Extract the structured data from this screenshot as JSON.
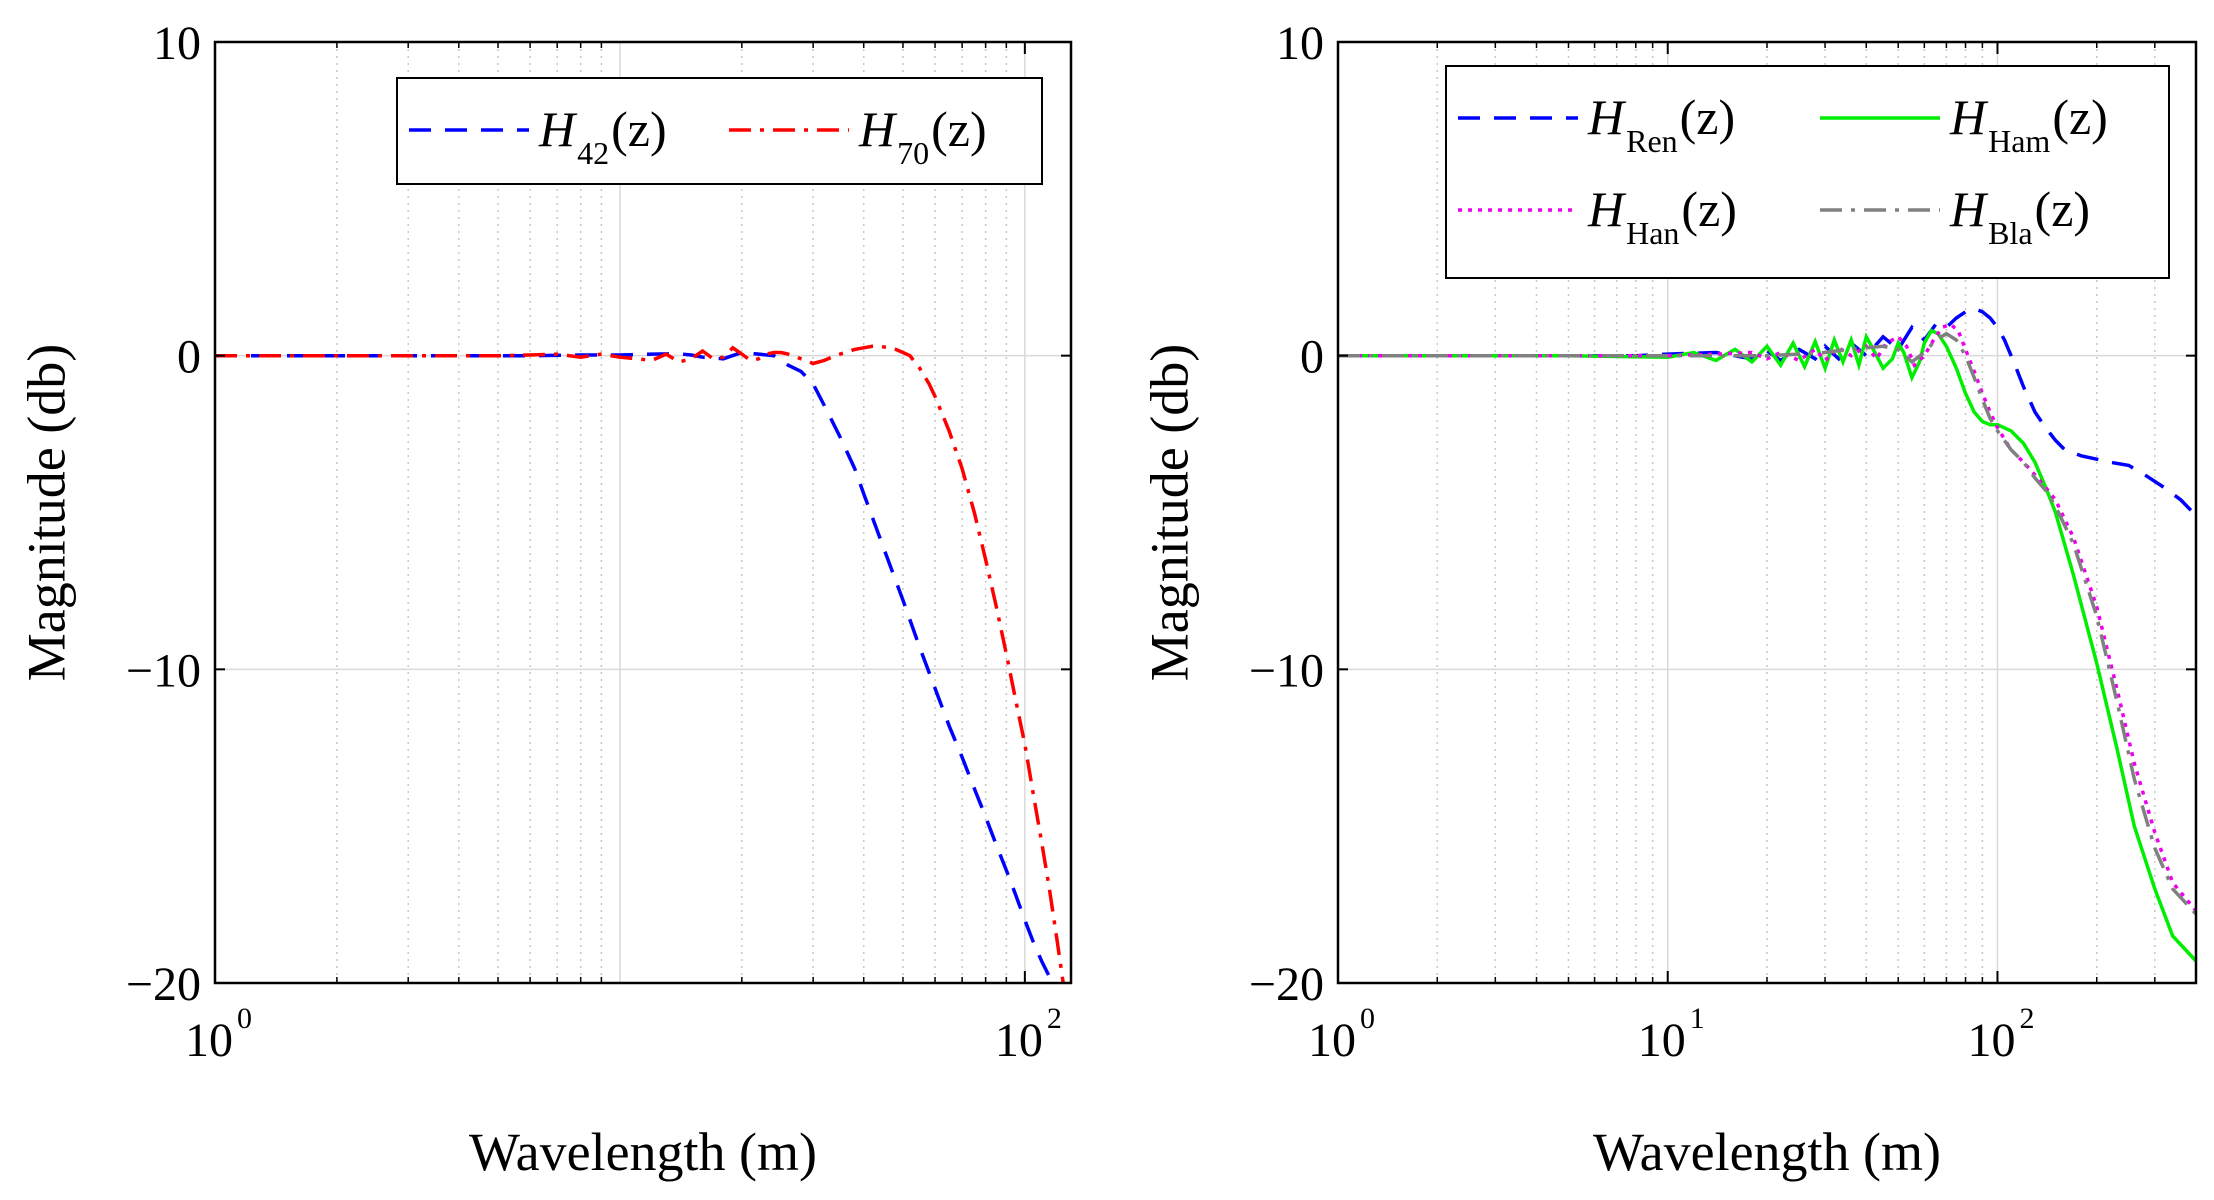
{
  "chart_data": [
    {
      "type": "line",
      "xscale": "log",
      "xlim": [
        1,
        130
      ],
      "ylim": [
        -20,
        10
      ],
      "xlabel": "Wavelength (m)",
      "ylabel": "Magnitude (db)",
      "xticks": [
        {
          "base": "10",
          "exp": "0",
          "value": 1
        },
        {
          "base": "10",
          "exp": "2",
          "value": 100
        }
      ],
      "yticks": [
        {
          "label": "10",
          "value": 10
        },
        {
          "label": "0",
          "value": 0
        },
        {
          "label": "−10",
          "value": -10
        },
        {
          "label": "−20",
          "value": -20
        }
      ],
      "grid": true,
      "legend_position": "top-right",
      "legend_columns": 2,
      "series": [
        {
          "name": "H_42(z)",
          "label_main": "H",
          "label_sub": "42",
          "label_tail": "(z)",
          "color": "#0000ff",
          "style": "dashed",
          "x": [
            1,
            2,
            4,
            6,
            8,
            10,
            12,
            14,
            15,
            16,
            18,
            20,
            22,
            24,
            26,
            28,
            30,
            32,
            35,
            38,
            40,
            45,
            50,
            55,
            60,
            65,
            70,
            75,
            80,
            85,
            90,
            95,
            100,
            105,
            110,
            115,
            120,
            125
          ],
          "y": [
            0,
            0,
            0,
            0,
            0.02,
            0.02,
            0.05,
            0.06,
            0.02,
            -0.05,
            -0.1,
            0.1,
            0.05,
            0,
            -0.3,
            -0.5,
            -0.9,
            -1.6,
            -2.6,
            -3.6,
            -4.4,
            -6.2,
            -7.8,
            -9.3,
            -10.6,
            -11.8,
            -12.8,
            -13.8,
            -14.7,
            -15.6,
            -16.4,
            -17.2,
            -18.0,
            -18.7,
            -19.3,
            -19.8,
            -20.1,
            -20.4
          ]
        },
        {
          "name": "H_70(z)",
          "label_main": "H",
          "label_sub": "70",
          "label_tail": "(z)",
          "color": "#ff0000",
          "style": "dashdot",
          "x": [
            1,
            2,
            3,
            4,
            5,
            6,
            7,
            8,
            9,
            10,
            11,
            12,
            13,
            14,
            15,
            16,
            17,
            18,
            19,
            20,
            21,
            22,
            23,
            24,
            25,
            26,
            28,
            30,
            32,
            34,
            36,
            38,
            40,
            42,
            44,
            46,
            48,
            50,
            52,
            55,
            58,
            60,
            65,
            70,
            75,
            80,
            85,
            90,
            95,
            100,
            105,
            110,
            115,
            120,
            125
          ],
          "y": [
            0,
            0,
            0,
            0,
            0,
            0.02,
            0.05,
            -0.05,
            0.05,
            -0.05,
            -0.1,
            -0.15,
            0.05,
            -0.2,
            -0.1,
            0.15,
            -0.1,
            -0.05,
            0.25,
            0.05,
            -0.15,
            -0.1,
            0.05,
            0.1,
            0.1,
            0.05,
            -0.1,
            -0.25,
            -0.15,
            0,
            0.1,
            0.2,
            0.25,
            0.3,
            0.3,
            0.25,
            0.2,
            0.1,
            0,
            -0.4,
            -0.9,
            -1.3,
            -2.4,
            -3.6,
            -5.0,
            -6.5,
            -8.0,
            -9.5,
            -11.0,
            -12.4,
            -14.0,
            -15.5,
            -17.0,
            -18.6,
            -20.2
          ]
        }
      ]
    },
    {
      "type": "line",
      "xscale": "log",
      "xlim": [
        1,
        400
      ],
      "ylim": [
        -20,
        10
      ],
      "xlabel": "Wavelength (m)",
      "ylabel": "Magnitude (db)",
      "xticks": [
        {
          "base": "10",
          "exp": "0",
          "value": 1
        },
        {
          "base": "10",
          "exp": "1",
          "value": 10
        },
        {
          "base": "10",
          "exp": "2",
          "value": 100
        }
      ],
      "yticks": [
        {
          "label": "10",
          "value": 10
        },
        {
          "label": "0",
          "value": 0
        },
        {
          "label": "−10",
          "value": -10
        },
        {
          "label": "−20",
          "value": -20
        }
      ],
      "grid": true,
      "legend_position": "top-right",
      "legend_columns": 2,
      "series": [
        {
          "name": "H_Ren(z)",
          "label_main": "H",
          "label_sub": "Ren",
          "label_tail": "(z)",
          "color": "#0000ff",
          "style": "dashed",
          "x": [
            1,
            3,
            5,
            8,
            10,
            14,
            18,
            20,
            22,
            25,
            28,
            30,
            33,
            36,
            40,
            45,
            50,
            55,
            60,
            65,
            70,
            75,
            80,
            85,
            90,
            95,
            100,
            105,
            110,
            115,
            120,
            130,
            140,
            150,
            160,
            170,
            180,
            200,
            220,
            250,
            280,
            320,
            360,
            400
          ],
          "y": [
            0,
            0,
            0,
            0,
            0.05,
            0.1,
            -0.1,
            0.15,
            -0.15,
            0.2,
            -0.1,
            0.3,
            -0.1,
            0.4,
            0,
            0.6,
            0.2,
            0.9,
            0.5,
            1.0,
            0.9,
            1.2,
            1.4,
            1.5,
            1.4,
            1.2,
            0.9,
            0.5,
            0,
            -0.5,
            -1.0,
            -1.8,
            -2.3,
            -2.7,
            -3.0,
            -3.1,
            -3.2,
            -3.3,
            -3.4,
            -3.5,
            -3.8,
            -4.2,
            -4.6,
            -5.1
          ]
        },
        {
          "name": "H_Ham(z)",
          "label_main": "H",
          "label_sub": "Ham",
          "label_tail": "(z)",
          "color": "#00ee00",
          "style": "solid",
          "x": [
            1,
            5,
            10,
            12,
            14,
            16,
            18,
            20,
            22,
            24,
            26,
            28,
            30,
            32,
            34,
            36,
            38,
            40,
            42,
            45,
            48,
            50,
            52,
            55,
            58,
            60,
            63,
            66,
            70,
            75,
            80,
            85,
            90,
            95,
            100,
            110,
            120,
            130,
            140,
            150,
            170,
            200,
            230,
            260,
            300,
            340,
            400
          ],
          "y": [
            0,
            0,
            -0.05,
            0.1,
            -0.15,
            0.2,
            -0.2,
            0.3,
            -0.3,
            0.4,
            -0.35,
            0.45,
            -0.4,
            0.5,
            -0.2,
            0.5,
            -0.3,
            0.6,
            0.2,
            -0.4,
            -0.1,
            0.4,
            0.1,
            -0.7,
            -0.2,
            0.4,
            0.8,
            0.7,
            0.3,
            -0.4,
            -1.2,
            -1.8,
            -2.1,
            -2.2,
            -2.2,
            -2.4,
            -2.8,
            -3.4,
            -4.2,
            -5.0,
            -7.0,
            -9.8,
            -12.5,
            -15.0,
            -17.0,
            -18.5,
            -19.3
          ]
        },
        {
          "name": "H_Han(z)",
          "label_main": "H",
          "label_sub": "Han",
          "label_tail": "(z)",
          "color": "#ee00ee",
          "style": "dotted",
          "x": [
            1,
            5,
            10,
            14,
            18,
            20,
            22,
            25,
            28,
            30,
            33,
            36,
            40,
            43,
            46,
            50,
            53,
            56,
            60,
            64,
            68,
            72,
            76,
            80,
            85,
            90,
            95,
            100,
            110,
            120,
            130,
            140,
            150,
            170,
            200,
            230,
            260,
            300,
            340,
            400
          ],
          "y": [
            0,
            0,
            0,
            0.05,
            0.1,
            -0.1,
            0.1,
            -0.15,
            0.2,
            -0.15,
            0.25,
            0,
            0.3,
            -0.1,
            0.4,
            0.6,
            0.3,
            -0.3,
            0,
            0.5,
            0.9,
            1.0,
            0.8,
            0.2,
            -0.5,
            -1.2,
            -1.8,
            -2.3,
            -3.0,
            -3.4,
            -3.8,
            -4.2,
            -4.6,
            -5.8,
            -8.0,
            -10.6,
            -13.0,
            -15.2,
            -16.8,
            -17.7
          ]
        },
        {
          "name": "H_Bla(z)",
          "label_main": "H",
          "label_sub": "Bla",
          "label_tail": "(z)",
          "color": "#808080",
          "style": "dashdot",
          "x": [
            1,
            5,
            10,
            15,
            20,
            25,
            30,
            35,
            40,
            45,
            50,
            55,
            60,
            65,
            70,
            75,
            80,
            85,
            90,
            95,
            100,
            110,
            120,
            130,
            140,
            150,
            170,
            200,
            230,
            260,
            300,
            340,
            400
          ],
          "y": [
            0,
            0,
            0,
            0,
            0,
            0.05,
            0.1,
            0.2,
            0.25,
            0.3,
            0.2,
            -0.2,
            0.1,
            0.5,
            0.7,
            0.5,
            0,
            -0.7,
            -1.4,
            -2.0,
            -2.4,
            -3.0,
            -3.4,
            -3.9,
            -4.3,
            -4.8,
            -6.0,
            -8.3,
            -11.0,
            -13.5,
            -15.7,
            -17.0,
            -17.8
          ]
        }
      ]
    }
  ]
}
